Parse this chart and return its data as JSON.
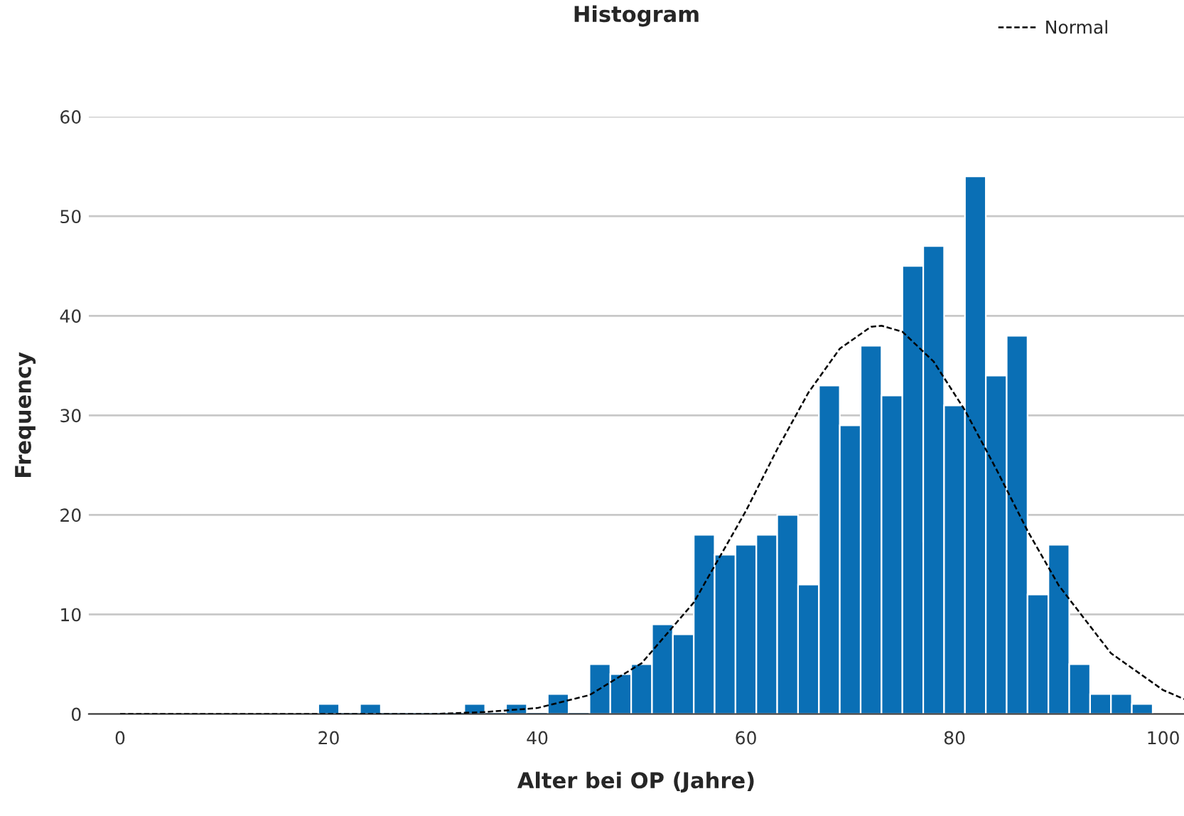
{
  "chart_data": {
    "type": "histogram",
    "title": "Histogram",
    "xlabel": "Alter bei OP (Jahre)",
    "ylabel": "Frequency",
    "bins": [
      19,
      21,
      23,
      25,
      27,
      29,
      31,
      33,
      35,
      37,
      39,
      41,
      43,
      45,
      47,
      49,
      51,
      53,
      55,
      57,
      59,
      61,
      63,
      65,
      67,
      69,
      71,
      73,
      75,
      77,
      79,
      81,
      83,
      85,
      87,
      89,
      91,
      93,
      95,
      97,
      99
    ],
    "values": [
      1,
      0,
      1,
      0,
      0,
      0,
      0,
      1,
      0,
      1,
      0,
      2,
      0,
      5,
      4,
      5,
      9,
      8,
      18,
      16,
      17,
      18,
      20,
      13,
      33,
      29,
      37,
      32,
      45,
      47,
      31,
      54,
      34,
      38,
      12,
      17,
      5,
      2,
      2,
      1
    ],
    "color": "#0a6fb5",
    "series": [
      {
        "type": "line",
        "name": "Normal",
        "color": "#000000",
        "line_style": "dashed",
        "x": [
          0,
          10,
          20,
          30,
          35,
          40,
          45,
          50,
          55,
          60,
          63,
          66,
          69,
          72,
          73,
          75,
          78,
          81,
          84,
          87,
          90,
          95,
          100,
          102
        ],
        "values": [
          0,
          0,
          0,
          0,
          0.2,
          0.6,
          1.9,
          5.1,
          11.2,
          20.4,
          26.6,
          32.3,
          36.7,
          38.9,
          39,
          38.4,
          35.4,
          30.5,
          24.6,
          18.4,
          12.9,
          6.1,
          2.4,
          1.5
        ]
      }
    ],
    "xlim": [
      -3,
      102
    ],
    "xticks": [
      0,
      20,
      40,
      60,
      80,
      100
    ],
    "ylim": [
      0,
      60
    ],
    "yticks": [
      0,
      10,
      20,
      30,
      40,
      50,
      60
    ],
    "grid": "y",
    "legend": "top right"
  }
}
